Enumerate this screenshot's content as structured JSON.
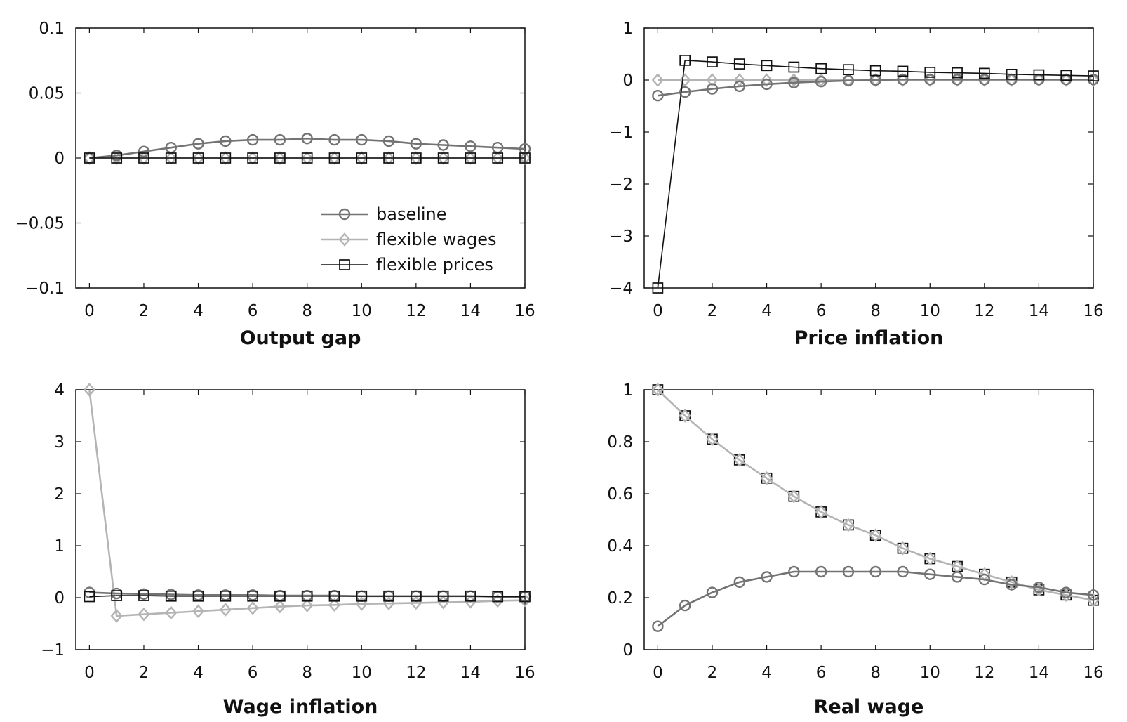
{
  "legend": [
    {
      "name": "baseline",
      "key": "baseline"
    },
    {
      "name": "flexible wages",
      "key": "flex_wages"
    },
    {
      "name": "flexible prices",
      "key": "flex_prices"
    }
  ],
  "styles": {
    "baseline": {
      "color": "#737373",
      "marker": "circle",
      "width": 2.6
    },
    "flex_wages": {
      "color": "#b4b4b4",
      "marker": "diamond",
      "width": 2.6
    },
    "flex_prices": {
      "color": "#111111",
      "marker": "square",
      "width": 1.6
    }
  },
  "chart_data": [
    {
      "type": "line",
      "title": "Output gap",
      "xlabel": "",
      "ylabel": "",
      "xlim": [
        -0.5,
        16
      ],
      "ylim": [
        -0.1,
        0.1
      ],
      "xticks": [
        0,
        2,
        4,
        6,
        8,
        10,
        12,
        14,
        16
      ],
      "xtick_labels": [
        "0",
        "2",
        "4",
        "6",
        "8",
        "10",
        "12",
        "14",
        "16"
      ],
      "yticks": [
        0.1,
        0.05,
        0,
        -0.05,
        -0.1
      ],
      "ytick_labels": [
        "0.1",
        "0.05",
        "0",
        "−0.05",
        "−0.1"
      ],
      "legend_position": "lower-right",
      "x": [
        0,
        1,
        2,
        3,
        4,
        5,
        6,
        7,
        8,
        9,
        10,
        11,
        12,
        13,
        14,
        15,
        16
      ],
      "series": [
        {
          "key": "flex_wages",
          "values": [
            0,
            0,
            0,
            0,
            0,
            0,
            0,
            0,
            0,
            0,
            0,
            0,
            0,
            0,
            0,
            0,
            0
          ]
        },
        {
          "key": "baseline",
          "values": [
            0,
            0.002,
            0.005,
            0.008,
            0.011,
            0.013,
            0.014,
            0.014,
            0.015,
            0.014,
            0.014,
            0.013,
            0.011,
            0.01,
            0.009,
            0.008,
            0.007
          ]
        },
        {
          "key": "flex_prices",
          "values": [
            0,
            0,
            0,
            0,
            0,
            0,
            0,
            0,
            0,
            0,
            0,
            0,
            0,
            0,
            0,
            0,
            0
          ]
        }
      ]
    },
    {
      "type": "line",
      "title": "Price inflation",
      "xlabel": "",
      "ylabel": "",
      "xlim": [
        -0.5,
        16
      ],
      "ylim": [
        -4,
        1
      ],
      "xticks": [
        0,
        2,
        4,
        6,
        8,
        10,
        12,
        14,
        16
      ],
      "xtick_labels": [
        "0",
        "2",
        "4",
        "6",
        "8",
        "10",
        "12",
        "14",
        "16"
      ],
      "yticks": [
        1,
        0,
        -1,
        -2,
        -3,
        -4
      ],
      "ytick_labels": [
        "1",
        "0",
        "−1",
        "−2",
        "−3",
        "−4"
      ],
      "x": [
        0,
        1,
        2,
        3,
        4,
        5,
        6,
        7,
        8,
        9,
        10,
        11,
        12,
        13,
        14,
        15,
        16
      ],
      "series": [
        {
          "key": "flex_wages",
          "values": [
            0,
            0,
            0,
            0,
            0,
            0,
            0,
            0,
            0,
            0,
            0,
            0,
            0,
            0,
            0,
            0,
            0
          ]
        },
        {
          "key": "baseline",
          "values": [
            -0.3,
            -0.23,
            -0.17,
            -0.12,
            -0.08,
            -0.05,
            -0.03,
            -0.01,
            0,
            0.01,
            0.01,
            0.01,
            0.01,
            0.01,
            0.01,
            0.01,
            0.01
          ]
        },
        {
          "key": "flex_prices",
          "values": [
            -4,
            0.38,
            0.35,
            0.31,
            0.28,
            0.25,
            0.22,
            0.2,
            0.18,
            0.17,
            0.15,
            0.14,
            0.13,
            0.11,
            0.1,
            0.09,
            0.08
          ]
        }
      ]
    },
    {
      "type": "line",
      "title": "Wage inflation",
      "xlabel": "",
      "ylabel": "",
      "xlim": [
        -0.5,
        16
      ],
      "ylim": [
        -1,
        4
      ],
      "xticks": [
        0,
        2,
        4,
        6,
        8,
        10,
        12,
        14,
        16
      ],
      "xtick_labels": [
        "0",
        "2",
        "4",
        "6",
        "8",
        "10",
        "12",
        "14",
        "16"
      ],
      "yticks": [
        4,
        3,
        2,
        1,
        0,
        -1
      ],
      "ytick_labels": [
        "4",
        "3",
        "2",
        "1",
        "0",
        "−1"
      ],
      "x": [
        0,
        1,
        2,
        3,
        4,
        5,
        6,
        7,
        8,
        9,
        10,
        11,
        12,
        13,
        14,
        15,
        16
      ],
      "series": [
        {
          "key": "flex_wages",
          "values": [
            4,
            -0.35,
            -0.32,
            -0.29,
            -0.26,
            -0.23,
            -0.2,
            -0.17,
            -0.15,
            -0.14,
            -0.12,
            -0.11,
            -0.1,
            -0.09,
            -0.08,
            -0.06,
            -0.05
          ]
        },
        {
          "key": "baseline",
          "values": [
            0.1,
            0.08,
            0.07,
            0.06,
            0.05,
            0.05,
            0.05,
            0.04,
            0.04,
            0.04,
            0.03,
            0.03,
            0.03,
            0.03,
            0.03,
            0.02,
            0.02
          ]
        },
        {
          "key": "flex_prices",
          "values": [
            0.02,
            0.04,
            0.04,
            0.03,
            0.03,
            0.03,
            0.03,
            0.03,
            0.03,
            0.03,
            0.03,
            0.03,
            0.03,
            0.03,
            0.03,
            0.02,
            0.02
          ]
        }
      ]
    },
    {
      "type": "line",
      "title": "Real wage",
      "xlabel": "",
      "ylabel": "",
      "xlim": [
        -0.5,
        16
      ],
      "ylim": [
        0,
        1
      ],
      "xticks": [
        0,
        2,
        4,
        6,
        8,
        10,
        12,
        14,
        16
      ],
      "xtick_labels": [
        "0",
        "2",
        "4",
        "6",
        "8",
        "10",
        "12",
        "14",
        "16"
      ],
      "yticks": [
        1,
        0.8,
        0.6,
        0.4,
        0.2,
        0
      ],
      "ytick_labels": [
        "1",
        "0.8",
        "0.6",
        "0.4",
        "0.2",
        "0"
      ],
      "x": [
        0,
        1,
        2,
        3,
        4,
        5,
        6,
        7,
        8,
        9,
        10,
        11,
        12,
        13,
        14,
        15,
        16
      ],
      "series": [
        {
          "key": "flex_prices",
          "values": [
            1,
            0.9,
            0.81,
            0.73,
            0.66,
            0.59,
            0.53,
            0.48,
            0.44,
            0.39,
            0.35,
            0.32,
            0.29,
            0.26,
            0.23,
            0.21,
            0.19
          ]
        },
        {
          "key": "flex_wages",
          "values": [
            1,
            0.9,
            0.81,
            0.73,
            0.66,
            0.59,
            0.53,
            0.48,
            0.44,
            0.39,
            0.35,
            0.32,
            0.29,
            0.26,
            0.23,
            0.21,
            0.19
          ]
        },
        {
          "key": "baseline",
          "values": [
            0.09,
            0.17,
            0.22,
            0.26,
            0.28,
            0.3,
            0.3,
            0.3,
            0.3,
            0.3,
            0.29,
            0.28,
            0.27,
            0.25,
            0.24,
            0.22,
            0.21
          ]
        }
      ]
    }
  ]
}
